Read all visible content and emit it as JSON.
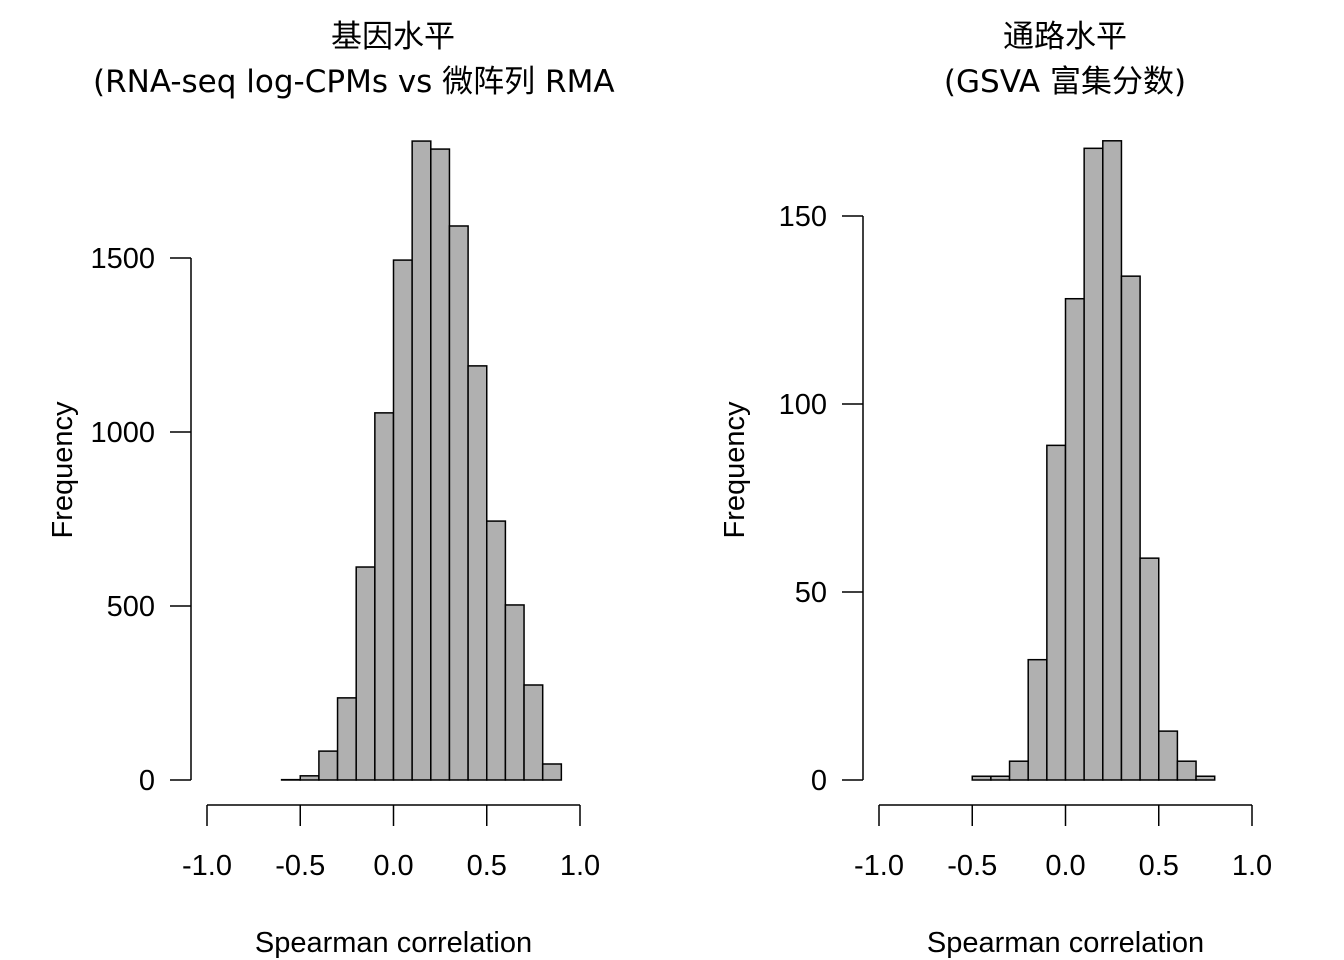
{
  "chart_data": [
    {
      "type": "bar",
      "title": "基因水平",
      "subtitle": "(RNA-seq log-CPMs vs 微阵列 RMA",
      "xlabel": "Spearman correlation",
      "ylabel": "Frequency",
      "xlim": [
        -1.0,
        1.0
      ],
      "xticks": [
        "-1.0",
        "-0.5",
        "0.0",
        "0.5",
        "1.0"
      ],
      "ylim": [
        0,
        1836
      ],
      "yticks": [
        "0",
        "500",
        "1000",
        "1500"
      ],
      "bin_start": -0.6,
      "bin_width": 0.1,
      "values": [
        1,
        12,
        83,
        236,
        612,
        1055,
        1494,
        1836,
        1813,
        1592,
        1190,
        744,
        503,
        273,
        46
      ],
      "bar_color": "#b0b0b0",
      "grid": false
    },
    {
      "type": "bar",
      "title": "通路水平",
      "subtitle": "(GSVA 富集分数)",
      "xlabel": "Spearman correlation",
      "ylabel": "Frequency",
      "xlim": [
        -1.0,
        1.0
      ],
      "xticks": [
        "-1.0",
        "-0.5",
        "0.0",
        "0.5",
        "1.0"
      ],
      "ylim": [
        0,
        170
      ],
      "yticks": [
        "0",
        "50",
        "100",
        "150"
      ],
      "bin_start": -0.5,
      "bin_width": 0.1,
      "values": [
        1,
        1,
        5,
        32,
        89,
        128,
        168,
        170,
        134,
        59,
        13,
        5,
        1
      ],
      "bar_color": "#b0b0b0",
      "grid": false
    }
  ]
}
